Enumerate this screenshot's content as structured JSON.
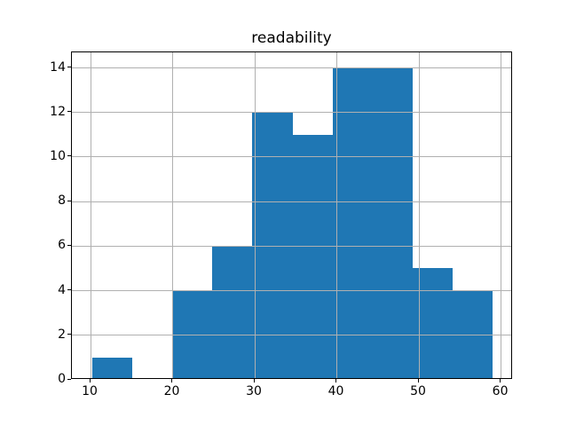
{
  "chart_data": {
    "type": "bar",
    "subtype": "histogram",
    "title": "readability",
    "xlabel": "",
    "ylabel": "",
    "bin_edges": [
      10.2,
      15.08,
      19.96,
      24.84,
      29.72,
      34.6,
      39.48,
      44.36,
      49.24,
      54.12,
      59.0
    ],
    "counts": [
      1,
      0,
      4,
      6,
      12,
      11,
      14,
      14,
      5,
      4
    ],
    "total_count": 71,
    "xticks": [
      10,
      20,
      30,
      40,
      50,
      60
    ],
    "yticks": [
      0,
      2,
      4,
      6,
      8,
      10,
      12,
      14
    ],
    "xlim": [
      7.73,
      61.45
    ],
    "ylim": [
      0,
      14.7
    ],
    "grid": true,
    "legend": null,
    "bar_color": "#1f77b4",
    "grid_color": "#b0b0b0",
    "spine_color": "#000000",
    "background_color": "#ffffff"
  }
}
